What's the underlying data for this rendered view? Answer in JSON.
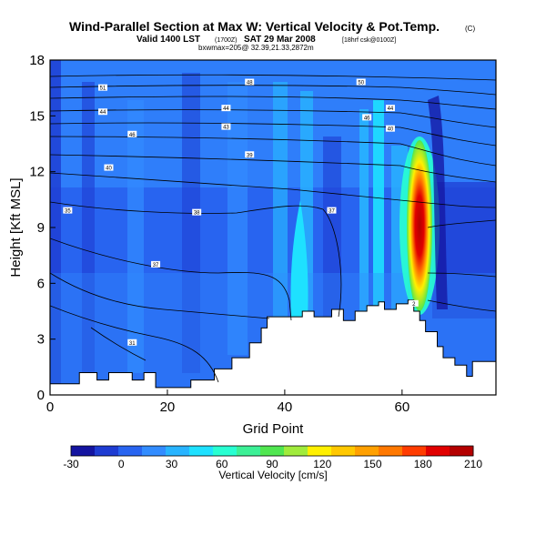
{
  "title": "Wind-Parallel Section at Max W: Vertical Velocity & Pot.Temp.",
  "title_mark": "(C)",
  "valid_prefix": "Valid 1400 LST",
  "valid_utc": "(1700Z)",
  "valid_date": "SAT 29 Mar 2008",
  "valid_suffix": "[18hrf csk@0100Z]",
  "line3": "bxwmax=205@ 32.39,21.33,2872m",
  "chart_data": {
    "type": "heatmap",
    "xlabel": "Grid Point",
    "ylabel": "Height [Kft MSL]",
    "xlim": [
      0,
      76
    ],
    "ylim": [
      0,
      18
    ],
    "x_ticks": [
      0,
      20,
      40,
      60
    ],
    "y_ticks": [
      0,
      3,
      6,
      9,
      12,
      15,
      18
    ],
    "colorbar": {
      "label": "Vertical Velocity [cm/s]",
      "ticks": [
        -30,
        0,
        30,
        60,
        90,
        120,
        150,
        180,
        210
      ],
      "colors": [
        "#1414a0",
        "#1e3cd2",
        "#2864f0",
        "#328cff",
        "#28b4ff",
        "#1ee1ff",
        "#28ffd2",
        "#3cf096",
        "#50e650",
        "#a0eb3c",
        "#fff000",
        "#ffc800",
        "#ffa000",
        "#ff7800",
        "#ff3c00",
        "#e10000",
        "#b40000"
      ]
    },
    "terrain_height_kft": [
      [
        0,
        0.6
      ],
      [
        5,
        0.6
      ],
      [
        5,
        1.2
      ],
      [
        8,
        1.2
      ],
      [
        8,
        0.8
      ],
      [
        10,
        0.8
      ],
      [
        10,
        1.2
      ],
      [
        14,
        1.2
      ],
      [
        14,
        0.8
      ],
      [
        16,
        0.8
      ],
      [
        16,
        1.2
      ],
      [
        18,
        1.2
      ],
      [
        18,
        0.4
      ],
      [
        24,
        0.4
      ],
      [
        24,
        0.8
      ],
      [
        28,
        0.8
      ],
      [
        28,
        1.4
      ],
      [
        31,
        1.4
      ],
      [
        31,
        2.0
      ],
      [
        34,
        2.0
      ],
      [
        34,
        2.8
      ],
      [
        36,
        2.8
      ],
      [
        36,
        3.6
      ],
      [
        37,
        3.6
      ],
      [
        37,
        4.2
      ],
      [
        43,
        4.2
      ],
      [
        43,
        4.5
      ],
      [
        45,
        4.5
      ],
      [
        45,
        4.2
      ],
      [
        48,
        4.2
      ],
      [
        48,
        4.6
      ],
      [
        50,
        4.6
      ],
      [
        50,
        4.0
      ],
      [
        52,
        4.0
      ],
      [
        52,
        4.5
      ],
      [
        54,
        4.5
      ],
      [
        54,
        4.8
      ],
      [
        56,
        4.8
      ],
      [
        56,
        5.0
      ],
      [
        57,
        5.0
      ],
      [
        57,
        4.6
      ],
      [
        59,
        4.6
      ],
      [
        59,
        4.9
      ],
      [
        61,
        4.9
      ],
      [
        61,
        5.1
      ],
      [
        62,
        5.1
      ],
      [
        62,
        4.5
      ],
      [
        63,
        4.5
      ],
      [
        63,
        4.0
      ],
      [
        64,
        4.0
      ],
      [
        64,
        3.4
      ],
      [
        66,
        3.4
      ],
      [
        66,
        2.6
      ],
      [
        67,
        2.6
      ],
      [
        67,
        2.0
      ],
      [
        69,
        2.0
      ],
      [
        69,
        1.6
      ],
      [
        71,
        1.6
      ],
      [
        71,
        1.0
      ],
      [
        72,
        1.0
      ],
      [
        72,
        1.8
      ],
      [
        76,
        1.8
      ]
    ],
    "theta_labels": [
      {
        "text": "51",
        "x": 9,
        "y": 16.5
      },
      {
        "text": "48",
        "x": 34,
        "y": 16.8
      },
      {
        "text": "50",
        "x": 53,
        "y": 16.8
      },
      {
        "text": "44",
        "x": 9,
        "y": 15.2
      },
      {
        "text": "44",
        "x": 30,
        "y": 15.4
      },
      {
        "text": "44",
        "x": 58,
        "y": 15.4
      },
      {
        "text": "46",
        "x": 14,
        "y": 14.0
      },
      {
        "text": "43",
        "x": 30,
        "y": 14.4
      },
      {
        "text": "46",
        "x": 54,
        "y": 14.9
      },
      {
        "text": "40",
        "x": 58,
        "y": 14.3
      },
      {
        "text": "40",
        "x": 10,
        "y": 12.2
      },
      {
        "text": "39",
        "x": 34,
        "y": 12.9
      },
      {
        "text": "35",
        "x": 3,
        "y": 9.9
      },
      {
        "text": "38",
        "x": 25,
        "y": 9.8
      },
      {
        "text": "37",
        "x": 48,
        "y": 9.9
      },
      {
        "text": "37",
        "x": 18,
        "y": 7.0
      },
      {
        "text": "31",
        "x": 14,
        "y": 2.8
      },
      {
        "text": "2",
        "x": 62,
        "y": 4.9
      }
    ]
  }
}
